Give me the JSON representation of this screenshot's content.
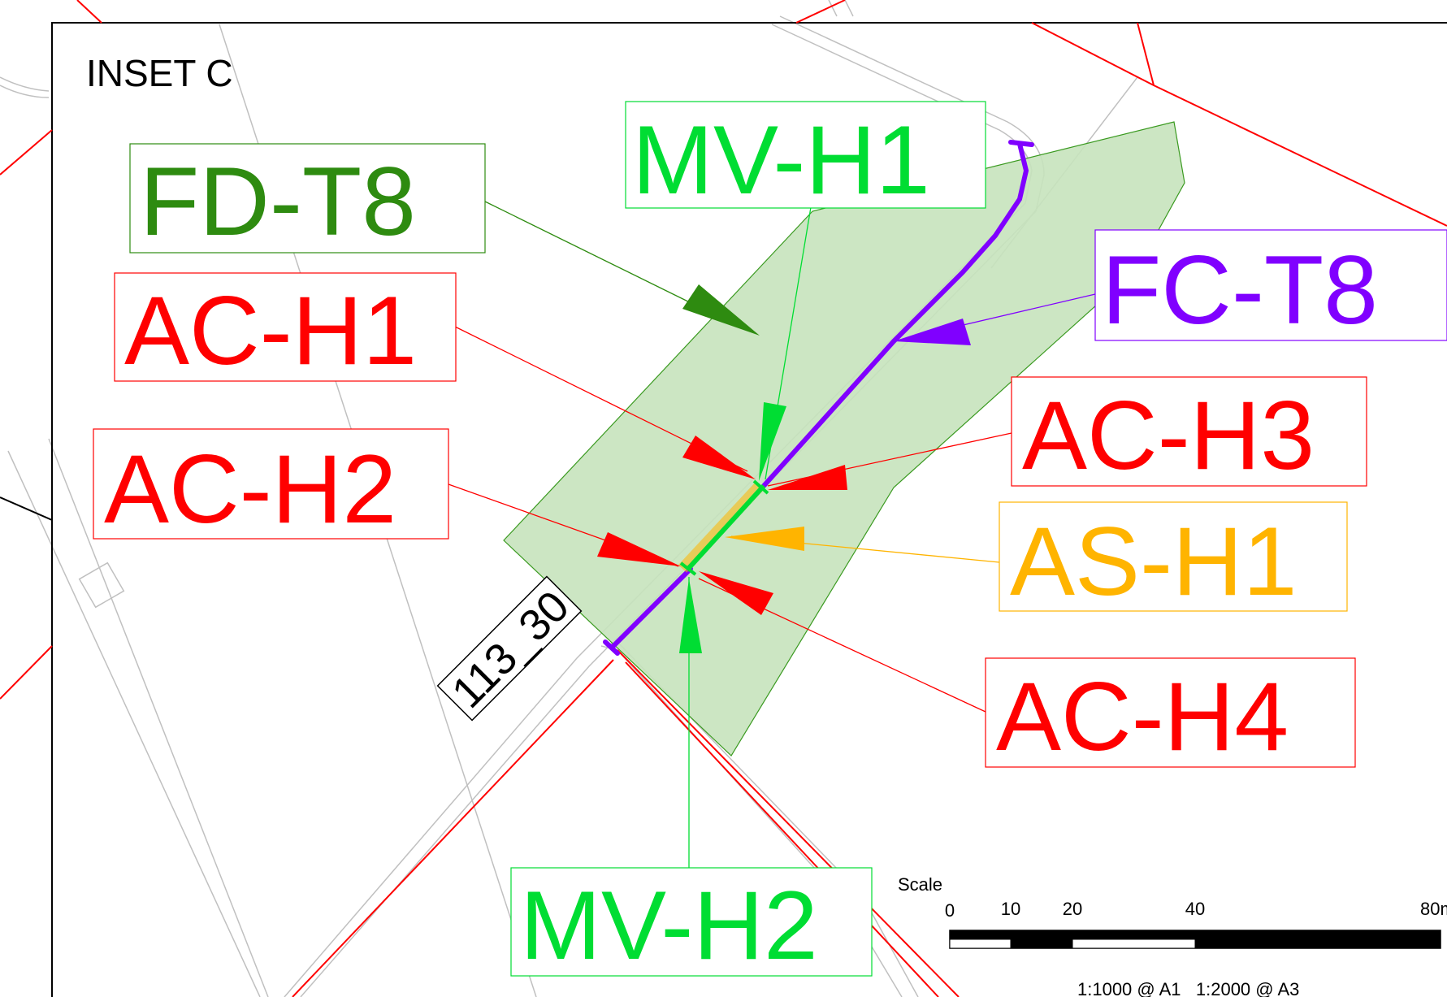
{
  "inset_title": "INSET C",
  "plot_label": "113_30",
  "colors": {
    "red": "#ff0000",
    "green_light": "#00dd33",
    "green_dark": "#2e8b10",
    "purple": "#8000ff",
    "amber": "#ffb400",
    "area_fill": "#c6e3bd",
    "grey_line": "#c0c0c0"
  },
  "labels": {
    "fd_t8": "FD-T8",
    "mv_h1": "MV-H1",
    "fc_t8": "FC-T8",
    "ac_h1": "AC-H1",
    "ac_h2": "AC-H2",
    "ac_h3": "AC-H3",
    "as_h1": "AS-H1",
    "ac_h4": "AC-H4",
    "mv_h2": "MV-H2"
  },
  "scale_bar": {
    "title": "Scale",
    "ticks": [
      "0",
      "10",
      "20",
      "40",
      "80m"
    ],
    "ratio_text": "1:1000 @ A1   1:2000 @ A3"
  }
}
